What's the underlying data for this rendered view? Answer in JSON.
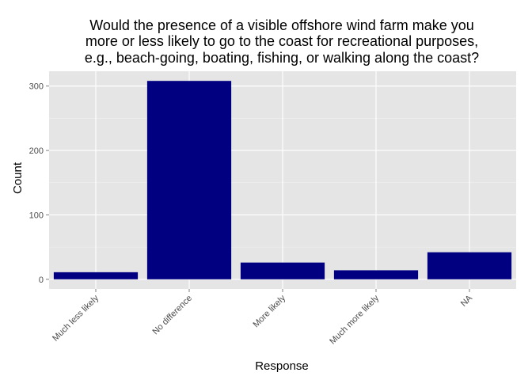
{
  "chart_data": {
    "type": "bar",
    "title_lines": [
      "Would the presence of a visible offshore wind farm make you",
      "more or less likely to go to the coast for recreational purposes,",
      "e.g., beach-going, boating, fishing, or walking along the coast?"
    ],
    "xlabel": "Response",
    "ylabel": "Count",
    "categories": [
      "Much less likely",
      "No difference",
      "More likely",
      "Much more likely",
      "NA"
    ],
    "values": [
      11,
      308,
      26,
      14,
      42
    ],
    "ylim": [
      -15,
      323
    ],
    "yticks": [
      0,
      100,
      200,
      300
    ],
    "bar_color": "#000080",
    "panel_background": "#e5e5e5",
    "grid": true,
    "legend": "none"
  }
}
